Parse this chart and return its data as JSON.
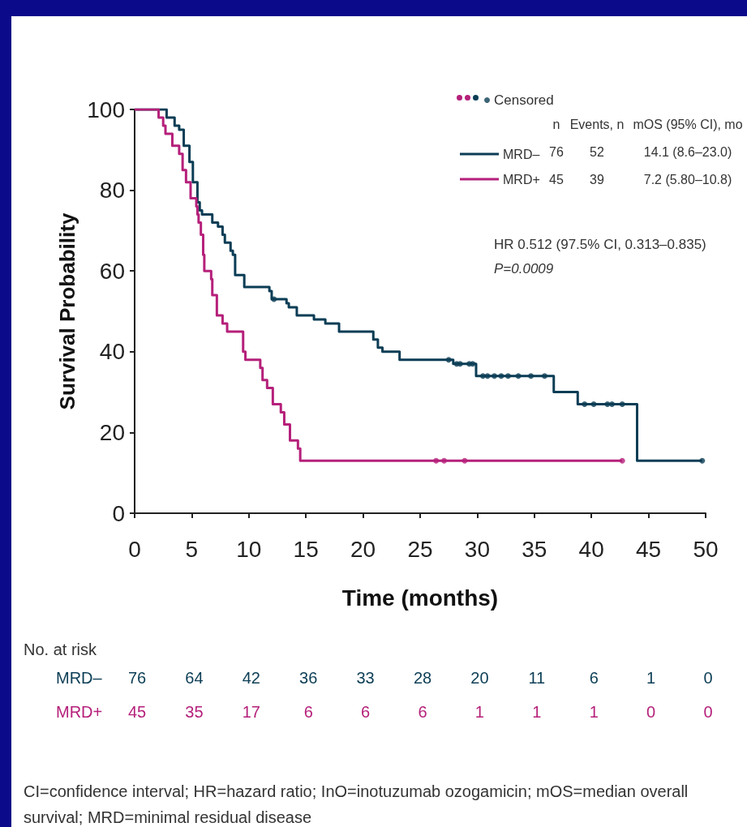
{
  "chart_data": {
    "type": "step",
    "xlabel": "Time (months)",
    "ylabel": "Survival Probability",
    "xlim": [
      0,
      50
    ],
    "xticks": [
      0,
      5,
      10,
      15,
      20,
      25,
      30,
      35,
      40,
      45,
      50
    ],
    "ylim": [
      0,
      100
    ],
    "yticks": [
      0,
      20,
      40,
      60,
      80,
      100
    ],
    "grid": false,
    "legend": "top right",
    "series": [
      {
        "name": "Censored",
        "type": "scatter",
        "x": [
          12.2,
          27.5,
          28.2,
          28.5,
          29.3,
          29.6,
          30.5,
          30.9,
          31.5,
          32.1,
          32.7,
          33.6,
          34.7,
          35.9,
          39.4,
          40.2,
          41.4,
          41.8,
          42.7,
          49.7,
          26.4,
          27.1,
          28.9,
          42.7
        ],
        "values": [
          53,
          38,
          37,
          37,
          37,
          37,
          34,
          34,
          34,
          34,
          34,
          34,
          34,
          34,
          27,
          27,
          27,
          27,
          27,
          13,
          13,
          13,
          13,
          13
        ],
        "colors": [
          "#0b3d55",
          "#0b3d55",
          "#0b3d55",
          "#0b3d55",
          "#0b3d55",
          "#0b3d55",
          "#0b3d55",
          "#0b3d55",
          "#0b3d55",
          "#0b3d55",
          "#0b3d55",
          "#0b3d55",
          "#0b3d55",
          "#0b3d55",
          "#0b3d55",
          "#0b3d55",
          "#0b3d55",
          "#0b3d55",
          "#0b3d55",
          "#0b3d55",
          "#b5207a",
          "#b5207a",
          "#b5207a",
          "#b5207a"
        ]
      },
      {
        "name": "MRD–",
        "color": "#0b3d55",
        "x": [
          0,
          2.8,
          3.5,
          3.9,
          4.3,
          4.8,
          5.1,
          5.5,
          5.7,
          5.9,
          6.8,
          7.3,
          7.7,
          7.9,
          8.4,
          8.6,
          8.8,
          9.6,
          11.8,
          12,
          13.3,
          13.5,
          14.2,
          15.7,
          16.7,
          17.9,
          20.9,
          21.3,
          21.7,
          23.2,
          27.9,
          29.9,
          36.7,
          38.8,
          44,
          49.7
        ],
        "values": [
          100,
          98,
          96,
          95,
          91,
          87,
          82,
          77,
          75,
          74,
          72,
          71,
          69,
          67,
          65,
          64,
          59,
          56,
          55,
          53,
          52,
          51,
          49,
          48,
          47,
          45,
          43,
          41,
          40,
          38,
          37,
          34,
          30,
          27,
          13,
          13
        ]
      },
      {
        "name": "MRD+",
        "color": "#b5207a",
        "x": [
          0,
          2.1,
          2.5,
          2.7,
          3.3,
          3.9,
          4.2,
          4.5,
          4.9,
          5.4,
          5.5,
          5.6,
          5.8,
          6,
          6.1,
          6.7,
          6.8,
          7.2,
          7.7,
          8.1,
          9.5,
          9.7,
          11,
          11.2,
          11.6,
          12.1,
          12.8,
          13.1,
          13.6,
          14.3,
          14.5,
          42.7
        ],
        "values": [
          100,
          98,
          96,
          94,
          91,
          89,
          85,
          82,
          78,
          76,
          74,
          72,
          69,
          64,
          60,
          58,
          54,
          49,
          47,
          45,
          40,
          38,
          36,
          33,
          31,
          27,
          25,
          22,
          18,
          16,
          13,
          13
        ]
      }
    ],
    "annotations": [
      "n",
      "Events, n",
      "mOS (95% CI), mo",
      "76",
      "52",
      "14.1 (8.6–23.0)",
      "45",
      "39",
      "7.2 (5.80–10.8)",
      "HR 0.512 (97.5% CI, 0.313–0.835)",
      "P=0.0009",
      "No. at risk",
      "76",
      "64",
      "42",
      "36",
      "33",
      "28",
      "20",
      "11",
      "6",
      "1",
      "0",
      "45",
      "35",
      "17",
      "6",
      "6",
      "6",
      "1",
      "1",
      "1",
      "0",
      "0",
      "CI=confidence interval; HR=hazard ratio; InO=inotuzumab ozogamicin; mOS=median overall survival; MRD=minimal residual disease"
    ]
  }
}
